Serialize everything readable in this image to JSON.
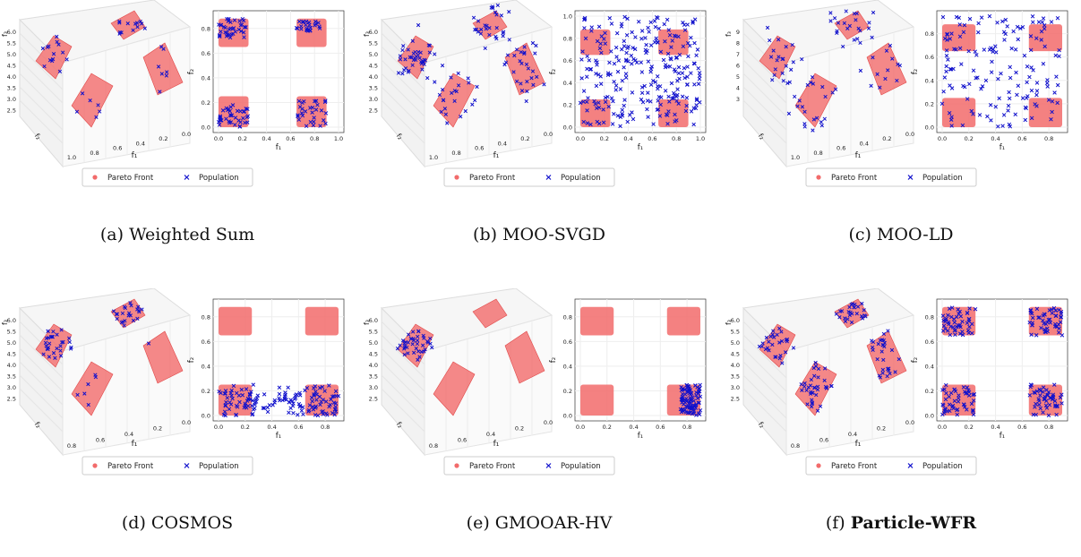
{
  "legend": {
    "pareto_label": "Pareto Front",
    "population_label": "Population",
    "pareto_color": "#f26b6b",
    "population_color": "#1111cc"
  },
  "axes3d": {
    "z_label": "f₃",
    "y_label": "f₂",
    "x_label": "f₁"
  },
  "scatter2d": {
    "x_label": "f₁",
    "y_label": "f₂"
  },
  "panels": [
    {
      "letter": "(a)",
      "name": "Weighted Sum",
      "bold": false,
      "z_ticks": [
        "6.0",
        "5.5",
        "5.0",
        "4.5",
        "4.0",
        "3.5",
        "3.0",
        "2.5"
      ],
      "x_ticks": [
        "1.0",
        "0.8",
        "0.6",
        "0.4",
        "0.2",
        "0.0"
      ],
      "ticks2d_x": [
        "0.0",
        "0.2",
        "0.4",
        "0.6",
        "0.8",
        "1.0"
      ],
      "ticks2d_y": [
        "0.0",
        "0.2",
        "0.4",
        "0.6",
        "0.8"
      ]
    },
    {
      "letter": "(b)",
      "name": "MOO-SVGD",
      "bold": false,
      "z_ticks": [
        "6.0",
        "5.5",
        "5.0",
        "4.5",
        "4.0",
        "3.5",
        "3.0",
        "2.5"
      ],
      "x_ticks": [
        "1.0",
        "0.8",
        "0.6",
        "0.4",
        "0.2",
        "0.0"
      ],
      "ticks2d_x": [
        "0.0",
        "0.2",
        "0.4",
        "0.6",
        "0.8",
        "1.0"
      ],
      "ticks2d_y": [
        "0.0",
        "0.2",
        "0.4",
        "0.6",
        "0.8",
        "1.0"
      ]
    },
    {
      "letter": "(c)",
      "name": "MOO-LD",
      "bold": false,
      "z_ticks": [
        "9",
        "8",
        "7",
        "6",
        "5",
        "4",
        "3"
      ],
      "x_ticks": [
        "1.0",
        "0.8",
        "0.6",
        "0.4",
        "0.2",
        "0.0"
      ],
      "ticks2d_x": [
        "0.0",
        "0.2",
        "0.4",
        "0.6",
        "0.8"
      ],
      "ticks2d_y": [
        "0.0",
        "0.2",
        "0.4",
        "0.6",
        "0.8"
      ]
    },
    {
      "letter": "(d)",
      "name": "COSMOS",
      "bold": false,
      "z_ticks": [
        "6.0",
        "5.5",
        "5.0",
        "4.5",
        "4.0",
        "3.5",
        "3.0",
        "2.5"
      ],
      "x_ticks": [
        "0.8",
        "0.6",
        "0.4",
        "0.2",
        "0.0"
      ],
      "ticks2d_x": [
        "0.0",
        "0.2",
        "0.4",
        "0.6",
        "0.8"
      ],
      "ticks2d_y": [
        "0.0",
        "0.2",
        "0.4",
        "0.6",
        "0.8"
      ]
    },
    {
      "letter": "(e)",
      "name": "GMOOAR-HV",
      "bold": false,
      "z_ticks": [
        "6.0",
        "5.5",
        "5.0",
        "4.5",
        "4.0",
        "3.5",
        "3.0",
        "2.5"
      ],
      "x_ticks": [
        "0.8",
        "0.6",
        "0.4",
        "0.2",
        "0.0"
      ],
      "ticks2d_x": [
        "0.0",
        "0.2",
        "0.4",
        "0.6",
        "0.8"
      ],
      "ticks2d_y": [
        "0.0",
        "0.2",
        "0.4",
        "0.6",
        "0.8"
      ]
    },
    {
      "letter": "(f)",
      "name": "Particle-WFR",
      "bold": true,
      "z_ticks": [
        "6.0",
        "5.5",
        "5.0",
        "4.5",
        "4.0",
        "3.5",
        "3.0",
        "2.5"
      ],
      "x_ticks": [
        "0.8",
        "0.6",
        "0.4",
        "0.2",
        "0.0"
      ],
      "ticks2d_x": [
        "0.0",
        "0.2",
        "0.4",
        "0.6",
        "0.8"
      ],
      "ticks2d_y": [
        "0.0",
        "0.2",
        "0.4",
        "0.6",
        "0.8"
      ]
    }
  ],
  "chart_data": [
    {
      "type": "scatter",
      "title": "Weighted Sum",
      "xlabel": "f₁",
      "ylabel": "f₂",
      "xlim": [
        0,
        1.0
      ],
      "ylim": [
        0,
        0.9
      ],
      "series": [
        {
          "name": "Population",
          "clusters": [
            {
              "x": [
                0.0,
                0.25
              ],
              "y": [
                0.72,
                0.88
              ],
              "n": 40
            },
            {
              "x": [
                0.65,
                0.85
              ],
              "y": [
                0.78,
                0.86
              ],
              "n": 25
            },
            {
              "x": [
                0.0,
                0.25
              ],
              "y": [
                0.0,
                0.2
              ],
              "n": 40
            },
            {
              "x": [
                0.65,
                0.9
              ],
              "y": [
                0.0,
                0.22
              ],
              "n": 30
            }
          ]
        }
      ]
    },
    {
      "type": "scatter",
      "title": "MOO-SVGD",
      "xlabel": "f₁",
      "ylabel": "f₂",
      "xlim": [
        0,
        1.0
      ],
      "ylim": [
        0,
        1.0
      ],
      "series": [
        {
          "name": "Population",
          "clusters": [
            {
              "x": [
                0.0,
                1.0
              ],
              "y": [
                0.0,
                1.0
              ],
              "n": 260
            }
          ]
        }
      ]
    },
    {
      "type": "scatter",
      "title": "MOO-LD",
      "xlabel": "f₁",
      "ylabel": "f₂",
      "xlim": [
        0,
        0.9
      ],
      "ylim": [
        0,
        0.95
      ],
      "series": [
        {
          "name": "Population",
          "clusters": [
            {
              "x": [
                0.0,
                0.9
              ],
              "y": [
                0.0,
                0.95
              ],
              "n": 150
            }
          ]
        }
      ]
    },
    {
      "type": "scatter",
      "title": "COSMOS",
      "xlabel": "f₁",
      "ylabel": "f₂",
      "xlim": [
        0,
        0.9
      ],
      "ylim": [
        0,
        0.9
      ],
      "series": [
        {
          "name": "Population",
          "clusters": [
            {
              "x": [
                0.0,
                0.9
              ],
              "y": [
                0.0,
                0.25
              ],
              "n": 150
            }
          ]
        }
      ]
    },
    {
      "type": "scatter",
      "title": "GMOOAR-HV",
      "xlabel": "f₁",
      "ylabel": "f₂",
      "xlim": [
        0,
        0.9
      ],
      "ylim": [
        0,
        0.9
      ],
      "series": [
        {
          "name": "Population",
          "clusters": [
            {
              "x": [
                0.75,
                0.9
              ],
              "y": [
                0.0,
                0.25
              ],
              "n": 90
            }
          ]
        }
      ]
    },
    {
      "type": "scatter",
      "title": "Particle-WFR",
      "xlabel": "f₁",
      "ylabel": "f₂",
      "xlim": [
        0,
        0.9
      ],
      "ylim": [
        0,
        0.9
      ],
      "series": [
        {
          "name": "Population",
          "clusters": [
            {
              "x": [
                0.0,
                0.25
              ],
              "y": [
                0.65,
                0.88
              ],
              "n": 50
            },
            {
              "x": [
                0.65,
                0.9
              ],
              "y": [
                0.65,
                0.88
              ],
              "n": 50
            },
            {
              "x": [
                0.0,
                0.25
              ],
              "y": [
                0.0,
                0.25
              ],
              "n": 50
            },
            {
              "x": [
                0.65,
                0.9
              ],
              "y": [
                0.0,
                0.25
              ],
              "n": 50
            }
          ]
        }
      ]
    }
  ]
}
